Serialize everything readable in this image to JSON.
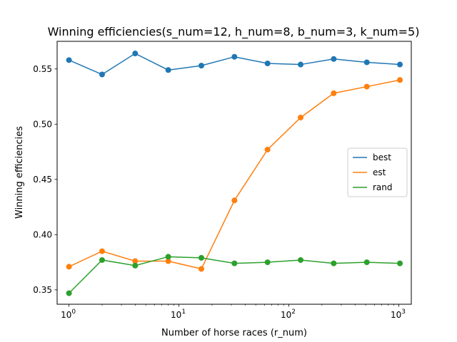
{
  "chart_data": {
    "type": "line",
    "title": "Winning efficiencies(s_num=12, h_num=8, b_num=3, k_num=5)",
    "xlabel": "Number of horse races (r_num)",
    "ylabel": "Winning efficiencies",
    "xscale": "log",
    "xlim": [
      0.78,
      1300
    ],
    "ylim": [
      0.337,
      0.575
    ],
    "x": [
      1,
      2,
      4,
      8,
      16,
      32,
      64,
      128,
      256,
      512,
      1024
    ],
    "xticks": [
      {
        "value": 1,
        "base": "10",
        "exp": "0"
      },
      {
        "value": 10,
        "base": "10",
        "exp": "1"
      },
      {
        "value": 100,
        "base": "10",
        "exp": "2"
      },
      {
        "value": 1000,
        "base": "10",
        "exp": "3"
      }
    ],
    "yticks": [
      {
        "value": 0.35,
        "label": "0.35"
      },
      {
        "value": 0.4,
        "label": "0.40"
      },
      {
        "value": 0.45,
        "label": "0.45"
      },
      {
        "value": 0.5,
        "label": "0.50"
      },
      {
        "value": 0.55,
        "label": "0.55"
      }
    ],
    "grid": false,
    "legend_position": "center-right",
    "series": [
      {
        "name": "best",
        "color": "#1f77b4",
        "values": [
          0.558,
          0.545,
          0.564,
          0.549,
          0.553,
          0.561,
          0.555,
          0.554,
          0.559,
          0.556,
          0.554
        ]
      },
      {
        "name": "est",
        "color": "#ff7f0e",
        "values": [
          0.371,
          0.385,
          0.376,
          0.376,
          0.369,
          0.431,
          0.477,
          0.506,
          0.528,
          0.534,
          0.54
        ]
      },
      {
        "name": "rand",
        "color": "#2ca02c",
        "values": [
          0.347,
          0.377,
          0.372,
          0.38,
          0.379,
          0.374,
          0.375,
          0.377,
          0.374,
          0.375,
          0.374
        ]
      }
    ]
  }
}
